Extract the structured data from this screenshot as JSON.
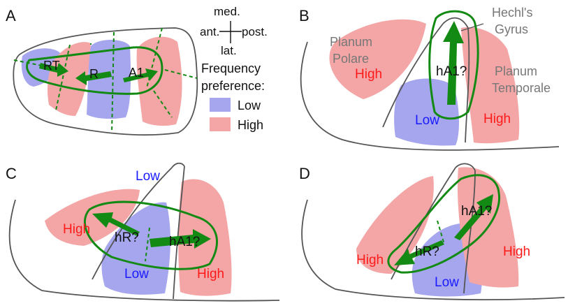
{
  "colors": {
    "high": "#f4a6a6",
    "low": "#a6a6ee",
    "roi": "#138a13",
    "high_text": "#ff1a1a",
    "low_text": "#1a1aff"
  },
  "panel_a": {
    "letter": "A",
    "orientation": {
      "med": "med.",
      "lat": "lat.",
      "ant": "ant.",
      "post": "post."
    },
    "fields": {
      "rt": "RT",
      "r": "R",
      "a1": "A1"
    },
    "legend": {
      "title_1": "Frequency",
      "title_2": "preference:",
      "low": "Low",
      "high": "High"
    }
  },
  "panel_b": {
    "letter": "B",
    "labels": {
      "hechl_1": "Hechl's",
      "hechl_2": "Gyrus",
      "pp_1": "Planum",
      "pp_2": "Polare",
      "pt_1": "Planum",
      "pt_2": "Temporale",
      "high_left": "High",
      "high_right": "High",
      "low": "Low",
      "field": "hA1?"
    }
  },
  "panel_c": {
    "letter": "C",
    "labels": {
      "high_left": "High",
      "high_right": "High",
      "low_top": "Low",
      "low_bottom": "Low",
      "hr": "hR?",
      "ha1": "hA1?"
    }
  },
  "panel_d": {
    "letter": "D",
    "labels": {
      "high_left": "High",
      "high_right": "High",
      "low": "Low",
      "hr": "hR?",
      "ha1": "hA1?"
    }
  }
}
